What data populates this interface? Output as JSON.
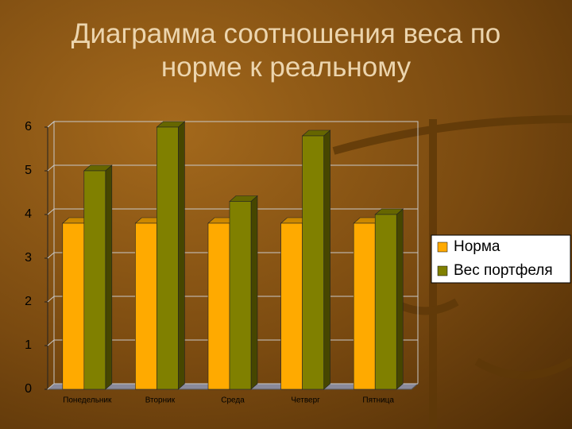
{
  "chart_data": {
    "type": "bar3d",
    "title": "Диаграмма соотношения веса по норме к реальному",
    "categories": [
      "Понедельник",
      "Вторник",
      "Среда",
      "Четверг",
      "Пятница"
    ],
    "series": [
      {
        "name": "Норма",
        "color": "#ffaa00",
        "values": [
          3.8,
          3.8,
          3.8,
          3.8,
          3.8
        ]
      },
      {
        "name": "Вес портфеля",
        "color": "#808000",
        "values": [
          5,
          6,
          4.3,
          5.8,
          4
        ]
      }
    ],
    "ylim": [
      0,
      6
    ],
    "yticks": [
      0,
      1,
      2,
      3,
      4,
      5,
      6
    ],
    "grid": true,
    "legend": "right"
  }
}
